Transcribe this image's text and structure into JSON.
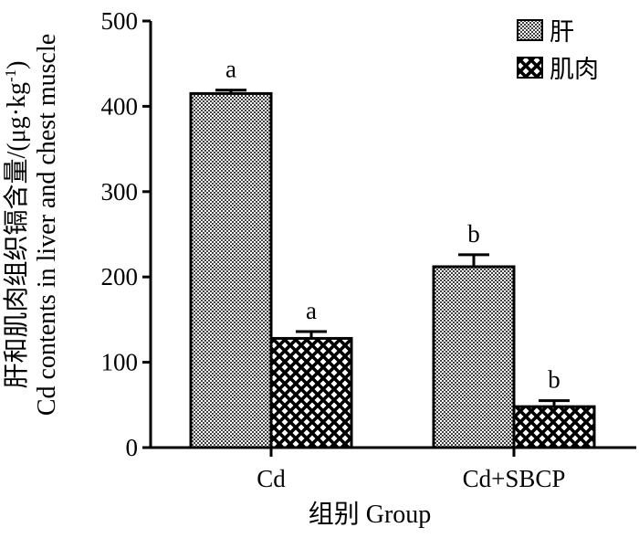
{
  "chart_data": {
    "type": "bar",
    "categories": [
      "Cd",
      "Cd+SBCP"
    ],
    "series": [
      {
        "name": "肝",
        "values": [
          415,
          212
        ],
        "errors": [
          4,
          14
        ],
        "significance": [
          "a",
          "b"
        ],
        "pattern": "fine-checker"
      },
      {
        "name": "肌肉",
        "values": [
          128,
          48
        ],
        "errors": [
          8,
          7
        ],
        "significance": [
          "a",
          "b"
        ],
        "pattern": "diamond-lattice"
      }
    ],
    "ylim": [
      0,
      500
    ],
    "yticks": [
      "0",
      "100",
      "200",
      "300",
      "400",
      "500"
    ],
    "xlabel": "组别 Group",
    "ylabel_line1": "肝和肌肉组织镉含量/(μg·kg",
    "ylabel_sup": "-1",
    "ylabel_line1_end": ")",
    "ylabel_line2": "Cd contents in liver and chest muscle",
    "legend_position": "top-right",
    "grid": false
  }
}
